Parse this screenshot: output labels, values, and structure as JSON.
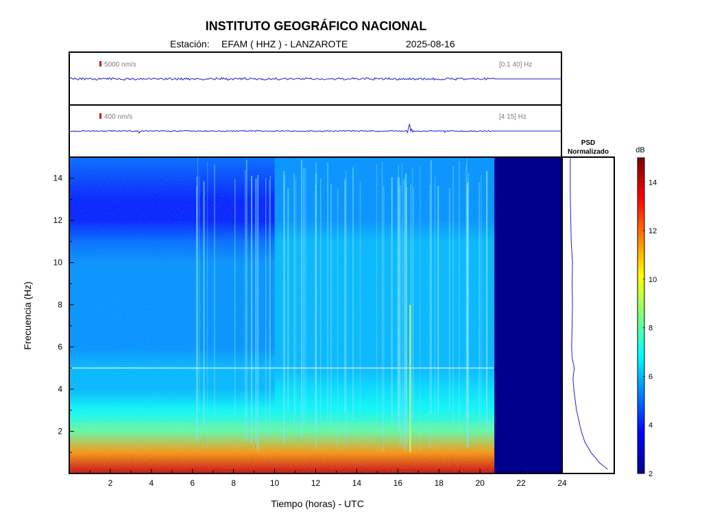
{
  "header": {
    "title": "INSTITUTO GEOGRÁFICO NACIONAL",
    "station_label": "Estación:",
    "station": "EFAM ( HHZ ) - LANZAROTE",
    "date": "2025-08-16"
  },
  "traces": [
    {
      "scale": "5000 nm/s",
      "band": "[0.1 40] Hz"
    },
    {
      "scale": "400 nm/s",
      "band": "[4 15] Hz"
    }
  ],
  "psd": {
    "title_line1": "PSD",
    "title_line2": "Normalizado"
  },
  "colorbar": {
    "label": "dB",
    "min": 2,
    "max": 15,
    "ticks": [
      2,
      4,
      6,
      8,
      10,
      12,
      14
    ]
  },
  "chart_data": {
    "type": "heatmap",
    "xlabel": "Tiempo (horas) - UTC",
    "ylabel": "Frecuencia  (Hz)",
    "xlim": [
      0,
      24
    ],
    "ylim": [
      0,
      15
    ],
    "xticks": [
      2,
      4,
      6,
      8,
      10,
      12,
      14,
      16,
      18,
      20,
      22,
      24
    ],
    "yticks": [
      2,
      4,
      6,
      8,
      10,
      12,
      14
    ],
    "data_end_hour": 20.7,
    "band_frequencies": [
      0.1,
      1,
      2,
      3,
      4,
      5,
      6,
      7,
      8,
      9,
      10,
      11,
      12,
      13,
      14,
      15
    ],
    "band_power_db_morning": [
      14,
      11.5,
      8,
      7,
      6,
      6,
      5.5,
      5.5,
      5.5,
      5.5,
      5.5,
      5,
      4,
      4,
      4.5,
      5
    ],
    "band_power_db_afternoon": [
      14,
      11.5,
      8,
      7,
      6.5,
      6,
      6,
      6,
      6,
      6,
      6,
      6,
      5.5,
      5.5,
      5.5,
      5.5
    ],
    "persistent_line_hz": 5.0,
    "event_hour": 16.6,
    "psd_curve": {
      "freq": [
        0.2,
        0.5,
        1,
        1.5,
        2,
        3,
        4,
        4.5,
        5,
        5.5,
        6,
        7,
        8,
        9,
        10,
        11,
        12,
        13,
        14,
        15
      ],
      "value": [
        0.88,
        0.7,
        0.5,
        0.36,
        0.28,
        0.17,
        0.11,
        0.09,
        0.12,
        0.07,
        0.06,
        0.07,
        0.08,
        0.07,
        0.08,
        0.05,
        0.04,
        0.03,
        0.03,
        0.03
      ]
    }
  }
}
